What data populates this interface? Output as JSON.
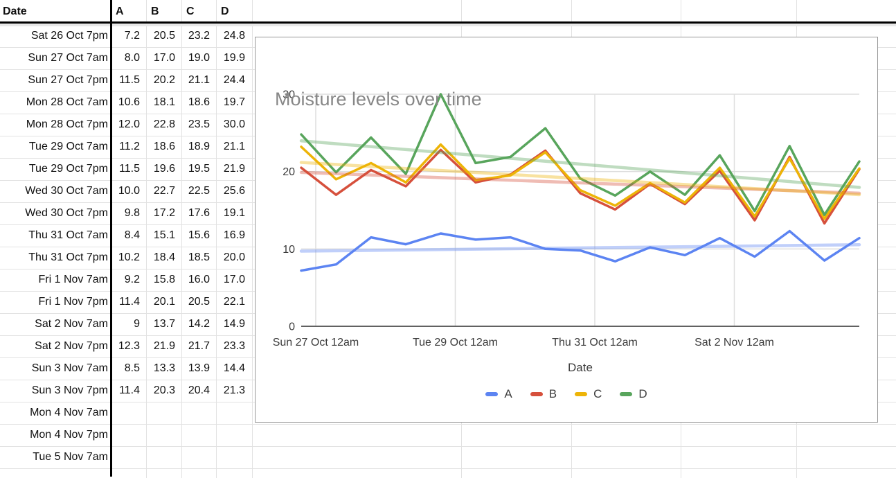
{
  "sheet": {
    "header": {
      "date": "Date",
      "series": [
        "A",
        "B",
        "C",
        "D"
      ]
    },
    "rows": [
      {
        "date": "Sat 26 Oct 7pm",
        "values": [
          "7.2",
          "20.5",
          "23.2",
          "24.8"
        ]
      },
      {
        "date": "Sun 27 Oct 7am",
        "values": [
          "8.0",
          "17.0",
          "19.0",
          "19.9"
        ]
      },
      {
        "date": "Sun 27 Oct 7pm",
        "values": [
          "11.5",
          "20.2",
          "21.1",
          "24.4"
        ]
      },
      {
        "date": "Mon 28 Oct 7am",
        "values": [
          "10.6",
          "18.1",
          "18.6",
          "19.7"
        ]
      },
      {
        "date": "Mon 28 Oct 7pm",
        "values": [
          "12.0",
          "22.8",
          "23.5",
          "30.0"
        ]
      },
      {
        "date": "Tue 29 Oct 7am",
        "values": [
          "11.2",
          "18.6",
          "18.9",
          "21.1"
        ]
      },
      {
        "date": "Tue 29 Oct 7pm",
        "values": [
          "11.5",
          "19.6",
          "19.5",
          "21.9"
        ]
      },
      {
        "date": "Wed 30 Oct 7am",
        "values": [
          "10.0",
          "22.7",
          "22.5",
          "25.6"
        ]
      },
      {
        "date": "Wed 30 Oct 7pm",
        "values": [
          "9.8",
          "17.2",
          "17.6",
          "19.1"
        ]
      },
      {
        "date": "Thu 31 Oct 7am",
        "values": [
          "8.4",
          "15.1",
          "15.6",
          "16.9"
        ]
      },
      {
        "date": "Thu 31 Oct 7pm",
        "values": [
          "10.2",
          "18.4",
          "18.5",
          "20.0"
        ]
      },
      {
        "date": "Fri 1 Nov 7am",
        "values": [
          "9.2",
          "15.8",
          "16.0",
          "17.0"
        ]
      },
      {
        "date": "Fri 1 Nov 7pm",
        "values": [
          "11.4",
          "20.1",
          "20.5",
          "22.1"
        ]
      },
      {
        "date": "Sat 2 Nov 7am",
        "values": [
          "9",
          "13.7",
          "14.2",
          "14.9"
        ]
      },
      {
        "date": "Sat 2 Nov 7pm",
        "values": [
          "12.3",
          "21.9",
          "21.7",
          "23.3"
        ]
      },
      {
        "date": "Sun 3 Nov 7am",
        "values": [
          "8.5",
          "13.3",
          "13.9",
          "14.4"
        ]
      },
      {
        "date": "Sun 3 Nov 7pm",
        "values": [
          "11.4",
          "20.3",
          "20.4",
          "21.3"
        ]
      },
      {
        "date": "Mon 4 Nov 7am",
        "values": [
          "",
          "",
          "",
          ""
        ]
      },
      {
        "date": "Mon 4 Nov 7pm",
        "values": [
          "",
          "",
          "",
          ""
        ]
      },
      {
        "date": "Tue 5 Nov 7am",
        "values": [
          "",
          "",
          "",
          ""
        ]
      }
    ]
  },
  "chart_data": {
    "type": "line",
    "title": "Moisture levels over time",
    "xlabel": "Date",
    "ylim": [
      0,
      30
    ],
    "y_ticks": [
      "0",
      "10",
      "20",
      "30"
    ],
    "y_tick_values": [
      0,
      10,
      20,
      30
    ],
    "x_tick_labels": [
      "Sun 27 Oct 12am",
      "Tue 29 Oct 12am",
      "Thu 31 Oct 12am",
      "Sat 2 Nov 12am"
    ],
    "x_gridline_hours": [
      5,
      53,
      101,
      149
    ],
    "x_range_hours": [
      0,
      192
    ],
    "categories": [
      "Sat 26 Oct 7pm",
      "Sun 27 Oct 7am",
      "Sun 27 Oct 7pm",
      "Mon 28 Oct 7am",
      "Mon 28 Oct 7pm",
      "Tue 29 Oct 7am",
      "Tue 29 Oct 7pm",
      "Wed 30 Oct 7am",
      "Wed 30 Oct 7pm",
      "Thu 31 Oct 7am",
      "Thu 31 Oct 7pm",
      "Fri 1 Nov 7am",
      "Fri 1 Nov 7pm",
      "Sat 2 Nov 7am",
      "Sat 2 Nov 7pm",
      "Sun 3 Nov 7am",
      "Sun 3 Nov 7pm"
    ],
    "x_hours": [
      0,
      12,
      24,
      36,
      48,
      60,
      72,
      84,
      96,
      108,
      120,
      132,
      144,
      156,
      168,
      180,
      192
    ],
    "series": [
      {
        "name": "A",
        "color": "#5c84f2",
        "values": [
          7.2,
          8.0,
          11.5,
          10.6,
          12.0,
          11.2,
          11.5,
          10.0,
          9.8,
          8.4,
          10.2,
          9.2,
          11.4,
          9,
          12.3,
          8.5,
          11.4
        ]
      },
      {
        "name": "B",
        "color": "#d6503c",
        "values": [
          20.5,
          17.0,
          20.2,
          18.1,
          22.8,
          18.6,
          19.6,
          22.7,
          17.2,
          15.1,
          18.4,
          15.8,
          20.1,
          13.7,
          21.9,
          13.3,
          20.3
        ]
      },
      {
        "name": "C",
        "color": "#edb407",
        "values": [
          23.2,
          19.0,
          21.1,
          18.6,
          23.5,
          18.9,
          19.5,
          22.5,
          17.6,
          15.6,
          18.5,
          16.0,
          20.5,
          14.2,
          21.7,
          13.9,
          20.4
        ]
      },
      {
        "name": "D",
        "color": "#58a55c",
        "values": [
          24.8,
          19.9,
          24.4,
          19.7,
          30.0,
          21.1,
          21.9,
          25.6,
          19.1,
          16.9,
          20.0,
          17.0,
          22.1,
          14.9,
          23.3,
          14.4,
          21.3
        ]
      }
    ],
    "trendlines": {
      "shown": true,
      "style": "linear"
    },
    "legend_position": "bottom",
    "grid": true,
    "colors": {
      "gridline": "#dedede",
      "axis": "#616161",
      "title": "#878787",
      "tick_text": "#3b3b3b"
    }
  }
}
